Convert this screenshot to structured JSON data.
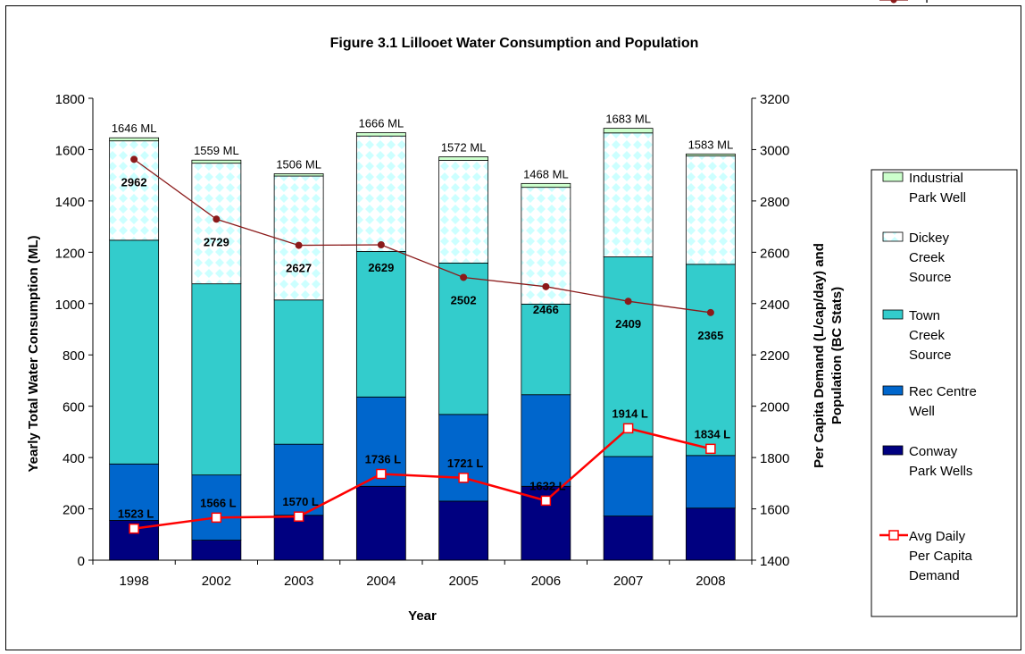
{
  "chart_data": {
    "type": "bar",
    "title": "Figure 3.1 Lillooet Water Consumption and Population",
    "xlabel": "Year",
    "ylabel": "Yearly Total Water Consumption (ML)",
    "y2label_line1": "Per Capita Demand (L/cap/day) and",
    "y2label_line2": "Population (BC Stats)",
    "categories": [
      "1998",
      "2002",
      "2003",
      "2004",
      "2005",
      "2006",
      "2007",
      "2008"
    ],
    "ylim": [
      0,
      1800
    ],
    "yticks": [
      0,
      200,
      400,
      600,
      800,
      1000,
      1200,
      1400,
      1600,
      1800
    ],
    "y2lim": [
      1400,
      3200
    ],
    "y2ticks": [
      1400,
      1600,
      1800,
      2000,
      2200,
      2400,
      2600,
      2800,
      3000,
      3200
    ],
    "legend_position": "right",
    "stacked_series": [
      {
        "name": "Conway Park Wells",
        "legend_lines": [
          "Conway",
          "Park Wells"
        ],
        "color": "#000080",
        "pattern": "solid",
        "values": [
          155,
          78,
          175,
          288,
          230,
          288,
          172,
          203
        ]
      },
      {
        "name": "Rec Centre Well",
        "legend_lines": [
          "Rec Centre",
          "Well"
        ],
        "color": "#0066CC",
        "pattern": "solid",
        "values": [
          220,
          254,
          277,
          348,
          338,
          357,
          232,
          205
        ]
      },
      {
        "name": "Town Creek Source",
        "legend_lines": [
          "Town",
          "Creek",
          "Source"
        ],
        "color": "#33CCCC",
        "pattern": "solid",
        "values": [
          872,
          745,
          562,
          567,
          590,
          353,
          778,
          745
        ]
      },
      {
        "name": "Dickey Creek Source",
        "legend_lines": [
          "Dickey",
          "Creek",
          "Source"
        ],
        "color": "#CCFFFF",
        "pattern": "diamond",
        "values": [
          387,
          470,
          483,
          450,
          400,
          455,
          483,
          422
        ]
      },
      {
        "name": "Industrial Park Well",
        "legend_lines": [
          "Industrial",
          "Park Well"
        ],
        "color": "#CCFFCC",
        "pattern": "solid",
        "values": [
          12,
          12,
          9,
          13,
          14,
          15,
          18,
          8
        ]
      }
    ],
    "totals": [
      1646,
      1559,
      1506,
      1666,
      1572,
      1468,
      1683,
      1583
    ],
    "total_labels": [
      "1646 ML",
      "1559 ML",
      "1506 ML",
      "1666 ML",
      "1572 ML",
      "1468 ML",
      "1683 ML",
      "1583 ML"
    ],
    "line_series": [
      {
        "name": "Avg Daily Per Capita Demand",
        "legend_lines": [
          "Avg Daily",
          "Per Capita",
          "Demand"
        ],
        "axis": "secondary",
        "color": "#FF0000",
        "marker": "square",
        "values": [
          1523,
          1566,
          1570,
          1736,
          1721,
          1632,
          1914,
          1834
        ],
        "labels": [
          "1523 L",
          "1566 L",
          "1570 L",
          "1736 L",
          "1721 L",
          "1632 L",
          "1914 L",
          "1834 L"
        ]
      },
      {
        "name": "Population",
        "legend_lines": [
          "Population"
        ],
        "axis": "secondary",
        "color": "#8B1A1A",
        "marker": "circle",
        "values": [
          2962,
          2729,
          2627,
          2629,
          2502,
          2466,
          2409,
          2365
        ],
        "labels": [
          "2962",
          "2729",
          "2627",
          "2629",
          "2502",
          "2466",
          "2409",
          "2365"
        ]
      }
    ]
  }
}
